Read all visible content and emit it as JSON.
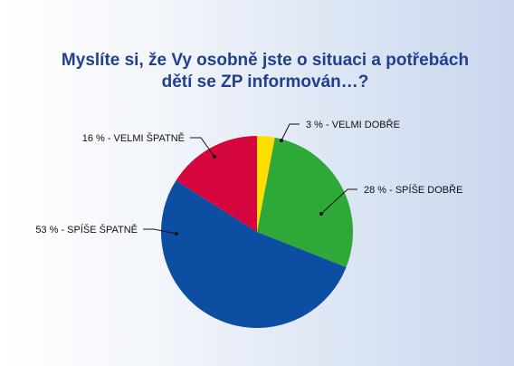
{
  "chart_data": {
    "type": "pie",
    "title_lines": [
      "Myslíte si, že Vy osobně jste o situaci a potřebách",
      "dětí se ZP informován…?"
    ],
    "slices": [
      {
        "label": "3 % - VELMI DOBŘE",
        "value": 3,
        "color": "#ffdd00"
      },
      {
        "label": "28 % - SPÍŠE DOBŘE",
        "value": 28,
        "color": "#2ea836"
      },
      {
        "label": "53 % - SPÍŠE ŠPATNĚ",
        "value": 53,
        "color": "#0b4ea2"
      },
      {
        "label": "16 % - VELMI ŠPATNĚ",
        "value": 16,
        "color": "#d4063d"
      }
    ]
  }
}
